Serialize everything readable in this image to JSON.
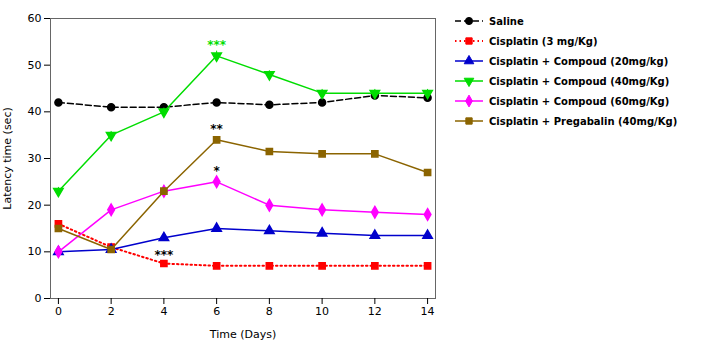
{
  "chart_data": {
    "type": "line",
    "xlabel": "Time (Days)",
    "ylabel": "Latency time (sec)",
    "x": [
      0,
      2,
      4,
      6,
      8,
      10,
      12,
      14
    ],
    "series": [
      {
        "name": "Saline",
        "color": "#000000",
        "marker": "circle",
        "line_style": "dashed",
        "values": [
          42,
          41,
          41,
          42,
          41.5,
          42,
          43.5,
          43
        ],
        "err": [
          0.6,
          0.5,
          0.6,
          0.5,
          0.5,
          0.5,
          0.6,
          0.5
        ]
      },
      {
        "name": "Cisplatin (3 mg/Kg)",
        "color": "#ff0000",
        "marker": "square",
        "line_style": "dotted",
        "values": [
          16,
          11,
          7.5,
          7,
          7,
          7,
          7,
          7
        ],
        "err": [
          0.5,
          0.5,
          0.5,
          0.5,
          0.5,
          0.5,
          0.5,
          0.5
        ]
      },
      {
        "name": "Cisplatin + Compoud (20mg/kg)",
        "color": "#0000cc",
        "marker": "triangle",
        "line_style": "solid",
        "values": [
          10,
          10.5,
          13,
          15,
          14.5,
          14,
          13.5,
          13.5
        ],
        "err": [
          0.5,
          0.5,
          0.6,
          0.6,
          0.5,
          0.5,
          0.5,
          0.5
        ]
      },
      {
        "name": "Cisplatin + Compoud (40mg/Kg)",
        "color": "#00dd00",
        "marker": "triangle_down",
        "line_style": "solid",
        "values": [
          23,
          35,
          40,
          52,
          48,
          44,
          44,
          44
        ],
        "err": [
          0.8,
          0.8,
          0.8,
          1.0,
          0.8,
          0.8,
          0.8,
          0.8
        ]
      },
      {
        "name": "Cisplatin + Compoud (60mg/Kg)",
        "color": "#ff00ff",
        "marker": "diamond",
        "line_style": "solid",
        "values": [
          10,
          19,
          23,
          25,
          20,
          19,
          18.5,
          18
        ],
        "err": [
          0.5,
          0.5,
          0.6,
          0.6,
          0.5,
          0.5,
          0.5,
          0.5
        ]
      },
      {
        "name": "Cisplatin + Pregabalin (40mg/Kg)",
        "color": "#8B6400",
        "marker": "square",
        "line_style": "solid",
        "values": [
          15,
          10.5,
          23,
          34,
          31.5,
          31,
          31,
          27
        ],
        "err": [
          0.6,
          0.5,
          0.7,
          0.7,
          0.6,
          0.6,
          0.6,
          0.6
        ]
      }
    ],
    "annotations": [
      {
        "text": "***",
        "x": 6,
        "y": 53.5,
        "color": "#00dd00"
      },
      {
        "text": "**",
        "x": 6,
        "y": 35.5,
        "color": "#000000"
      },
      {
        "text": "*",
        "x": 6,
        "y": 26.5,
        "color": "#000000"
      },
      {
        "text": "***",
        "x": 4,
        "y": 8.5,
        "color": "#000000"
      }
    ],
    "xlim": [
      -0.3,
      14.3
    ],
    "xticks": [
      0,
      2,
      4,
      6,
      8,
      10,
      12,
      14
    ],
    "ylim": [
      0,
      60
    ],
    "yticks": [
      0,
      10,
      20,
      30,
      40,
      50,
      60
    ],
    "grid": false,
    "legend": "right"
  }
}
